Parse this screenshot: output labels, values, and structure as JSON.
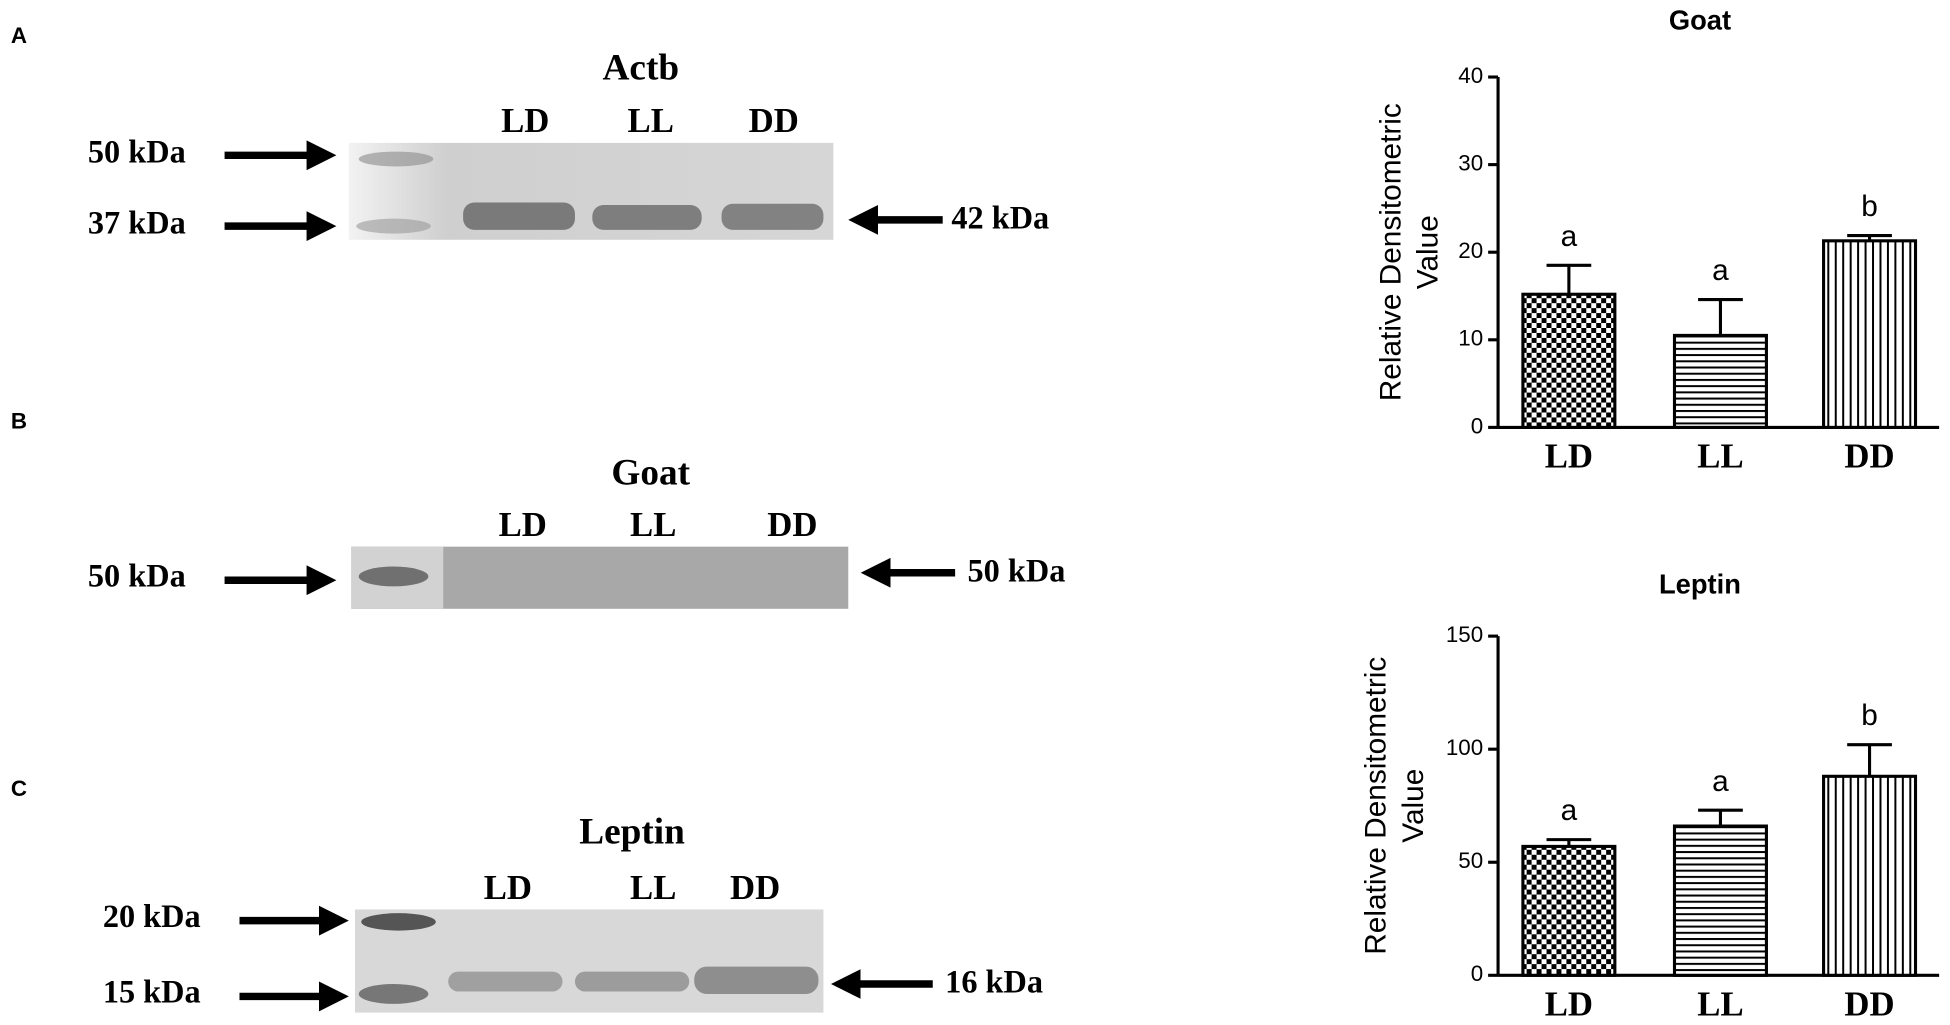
{
  "panels": [
    {
      "letter": "A",
      "title": "Actb",
      "lanes": [
        "LD",
        "LL",
        "DD"
      ],
      "left_markers": [
        "50 kDa",
        "37 kDa"
      ],
      "right_marker": "42 kDa"
    },
    {
      "letter": "B",
      "title": "Goat",
      "lanes": [
        "LD",
        "LL",
        "DD"
      ],
      "left_markers": [
        "50 kDa"
      ],
      "right_marker": "50 kDa"
    },
    {
      "letter": "C",
      "title": "Leptin",
      "lanes": [
        "LD",
        "LL",
        "DD"
      ],
      "left_markers": [
        "20 kDa",
        "15 kDa"
      ],
      "right_marker": "16 kDa"
    }
  ],
  "chart_data": [
    {
      "type": "bar",
      "title": "Goat",
      "y_label": [
        "Relative Densitometric",
        "Value"
      ],
      "categories": [
        "LD",
        "LL",
        "DD"
      ],
      "values": [
        15.2,
        10.5,
        21.3
      ],
      "errors": [
        3.3,
        4.1,
        0.6
      ],
      "annotations": [
        "a",
        "a",
        "b"
      ],
      "patterns": [
        "checker",
        "horizontal",
        "vertical"
      ],
      "ylim": [
        0,
        40
      ],
      "yticks": [
        0,
        10,
        20,
        30,
        40
      ],
      "grid": false,
      "color": "#000000"
    },
    {
      "type": "bar",
      "title": "Leptin",
      "y_label": [
        "Relative Densitometric",
        "Value"
      ],
      "categories": [
        "LD",
        "LL",
        "DD"
      ],
      "values": [
        57,
        66,
        88
      ],
      "errors": [
        3,
        7,
        14
      ],
      "annotations": [
        "a",
        "a",
        "b"
      ],
      "patterns": [
        "checker",
        "horizontal",
        "vertical"
      ],
      "ylim": [
        0,
        150
      ],
      "yticks": [
        0,
        50,
        100,
        150
      ],
      "grid": false,
      "color": "#000000"
    }
  ]
}
